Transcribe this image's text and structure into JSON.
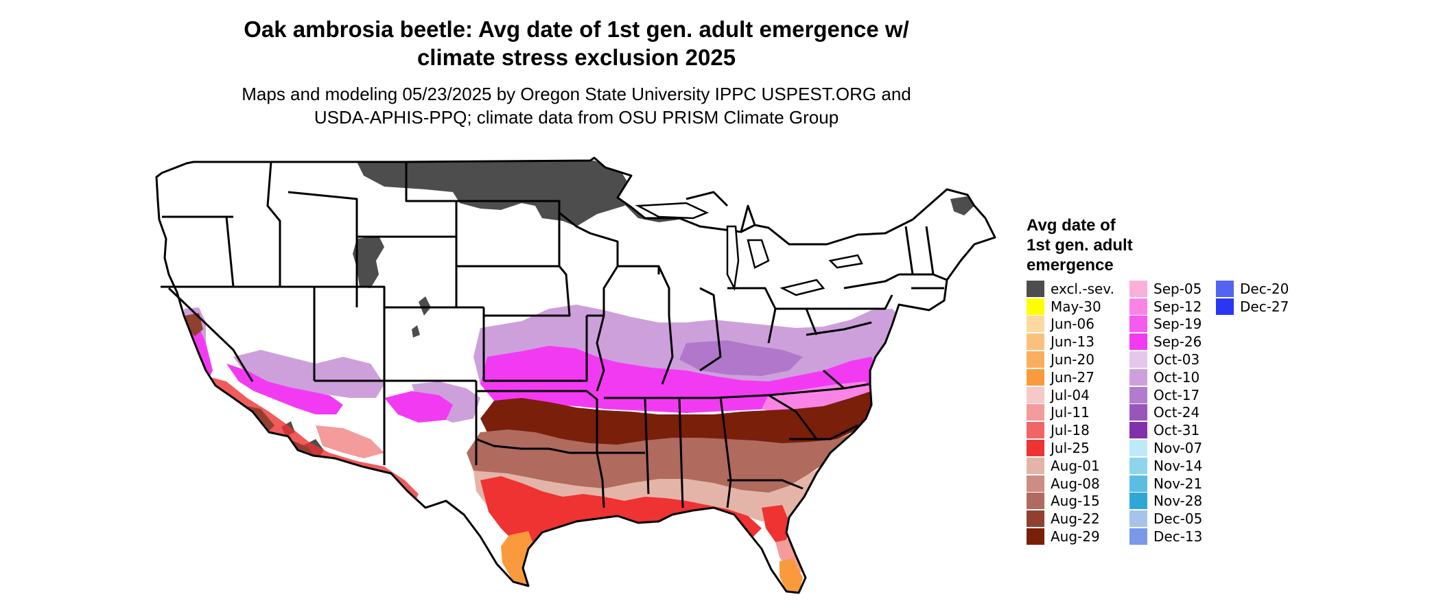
{
  "title": {
    "line1": "Oak ambrosia beetle: Avg date of 1st gen. adult emergence w/",
    "line2": "climate stress exclusion 2025"
  },
  "subtitle": {
    "line1": "Maps and modeling 05/23/2025 by Oregon State University IPPC USPEST.ORG and",
    "line2": "USDA-APHIS-PPQ; climate data from OSU PRISM Climate Group"
  },
  "legend": {
    "title_lines": [
      "Avg date of",
      "1st gen. adult",
      "emergence"
    ],
    "columns": [
      [
        {
          "label": "excl.-sev.",
          "color": "#4d4d4d"
        },
        {
          "label": "May-30",
          "color": "#ffff00"
        },
        {
          "label": "Jun-06",
          "color": "#fdd9a0"
        },
        {
          "label": "Jun-13",
          "color": "#fcc07e"
        },
        {
          "label": "Jun-20",
          "color": "#fbae5e"
        },
        {
          "label": "Jun-27",
          "color": "#fb9a3c"
        },
        {
          "label": "Jul-04",
          "color": "#f7c8c8"
        },
        {
          "label": "Jul-11",
          "color": "#f49b9b"
        },
        {
          "label": "Jul-18",
          "color": "#f26565"
        },
        {
          "label": "Jul-25",
          "color": "#ef3232"
        },
        {
          "label": "Aug-01",
          "color": "#e5b4a8"
        },
        {
          "label": "Aug-08",
          "color": "#cc8e82"
        },
        {
          "label": "Aug-15",
          "color": "#b06a5e"
        },
        {
          "label": "Aug-22",
          "color": "#91402f"
        },
        {
          "label": "Aug-29",
          "color": "#7a1f0a"
        }
      ],
      [
        {
          "label": "Sep-05",
          "color": "#fbb0dc"
        },
        {
          "label": "Sep-12",
          "color": "#f984e6"
        },
        {
          "label": "Sep-19",
          "color": "#f75aef"
        },
        {
          "label": "Sep-26",
          "color": "#f33af3"
        },
        {
          "label": "Oct-03",
          "color": "#e4c7ea"
        },
        {
          "label": "Oct-10",
          "color": "#cda0dc"
        },
        {
          "label": "Oct-17",
          "color": "#b27bcc"
        },
        {
          "label": "Oct-24",
          "color": "#9a55bd"
        },
        {
          "label": "Oct-31",
          "color": "#8331ab"
        },
        {
          "label": "Nov-07",
          "color": "#bde9f8"
        },
        {
          "label": "Nov-14",
          "color": "#8fd4ee"
        },
        {
          "label": "Nov-21",
          "color": "#5cbde2"
        },
        {
          "label": "Nov-28",
          "color": "#2ea7d6"
        },
        {
          "label": "Dec-05",
          "color": "#a8c3ea"
        },
        {
          "label": "Dec-13",
          "color": "#7a97e8"
        }
      ],
      [
        {
          "label": "Dec-20",
          "color": "#5564f0"
        },
        {
          "label": "Dec-27",
          "color": "#2b36f5"
        }
      ]
    ]
  }
}
